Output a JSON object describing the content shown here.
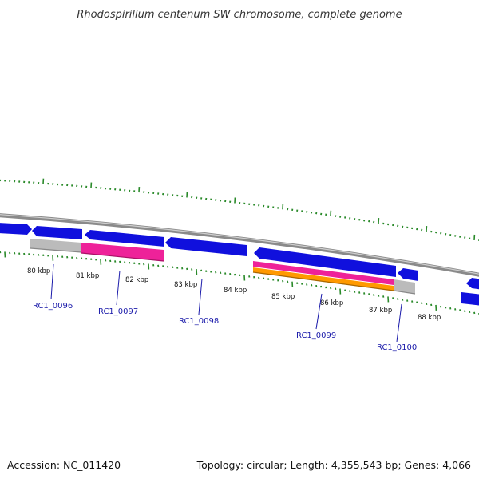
{
  "title": "Rhodospirillum centenum SW chromosome, complete genome",
  "footer": {
    "accession": "Accession: NC_011420",
    "summary": "Topology: circular; Length: 4,355,543 bp; Genes: 4,066"
  },
  "colors": {
    "backbone": "#8a8a8a",
    "gene": "#1010dd",
    "tick": "#2a8a2a",
    "pink": "#ee2299",
    "orange": "#ff9900",
    "gray": "#bbbbbb",
    "locus_text": "#1a1aaa"
  },
  "scale_labels": [
    "80 kbp",
    "81 kbp",
    "82 kbp",
    "83 kbp",
    "84 kbp",
    "85 kbp",
    "86 kbp",
    "87 kbp",
    "88 kbp"
  ],
  "locus_tags": [
    "RC1_0096",
    "RC1_0097",
    "RC1_0098",
    "RC1_0099",
    "RC1_0100"
  ]
}
